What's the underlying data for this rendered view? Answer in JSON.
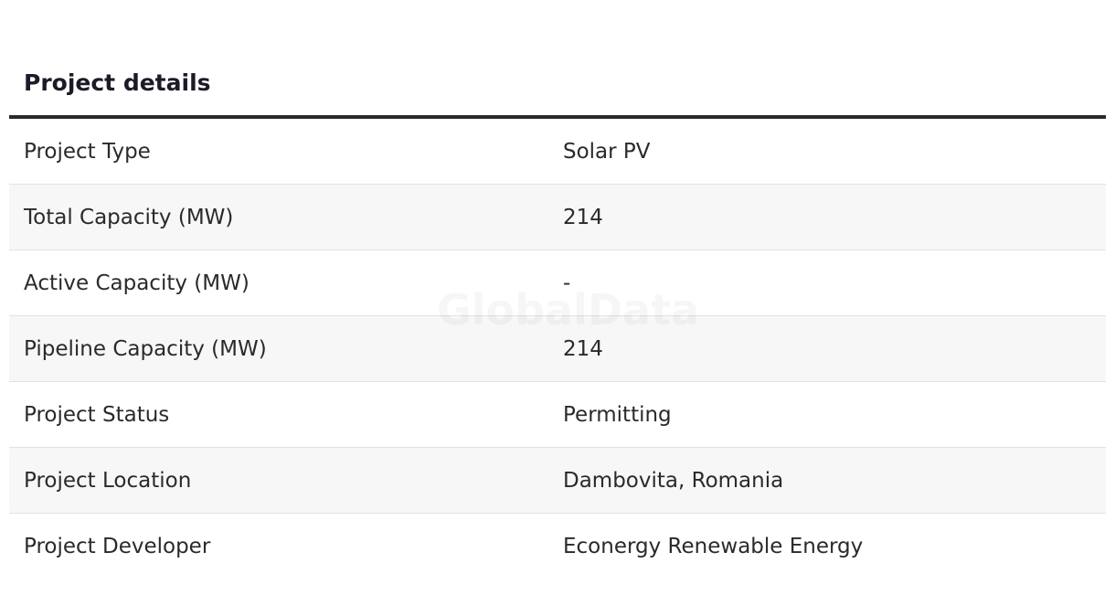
{
  "header": {
    "title": "Project details"
  },
  "watermark": "GlobalData",
  "table": {
    "rows": [
      [
        "Project Type",
        "Solar PV"
      ],
      [
        "Total Capacity (MW)",
        214
      ],
      [
        "Active Capacity (MW)",
        "-"
      ],
      [
        "Pipeline Capacity (MW)",
        214
      ],
      [
        "Project Status",
        "Permitting"
      ],
      [
        "Project Location",
        "Dambovita, Romania"
      ],
      [
        "Project Developer",
        "Econergy Renewable Energy"
      ]
    ]
  }
}
